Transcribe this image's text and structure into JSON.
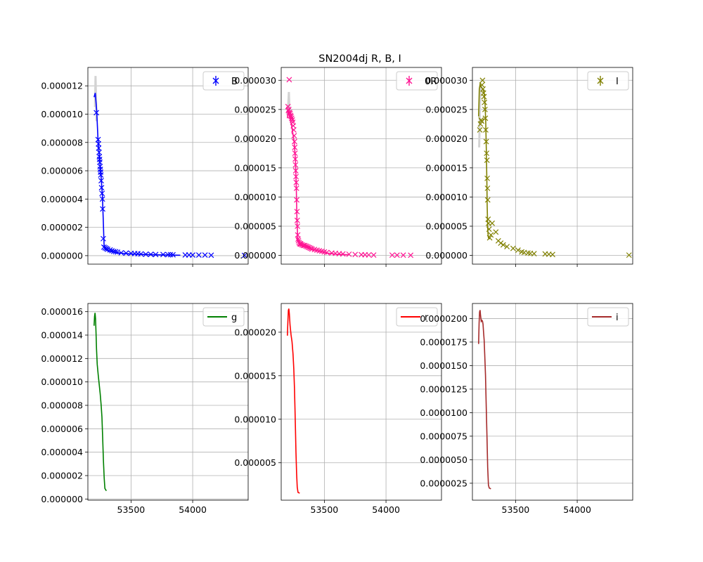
{
  "figure": {
    "title": "SN2004dj  R, B, I"
  },
  "chart_data": [
    {
      "type": "scatter",
      "panel": "B",
      "color": "#0000ff",
      "marker": "x",
      "legend": {
        "label": "B",
        "placement": "top-right"
      },
      "xlim": [
        53150,
        54450
      ],
      "ylim": [
        -6e-07,
        1.33e-05
      ],
      "grid": true,
      "yticks": [
        "0.000000",
        "0.000002",
        "0.000004",
        "0.000006",
        "0.000008",
        "0.000010",
        "0.000012"
      ],
      "yticks_values": [
        0,
        2e-06,
        4e-06,
        6e-06,
        8e-06,
        1e-05,
        1.2e-05
      ],
      "xticks": [],
      "xticks_values": [
        53500,
        54000
      ],
      "template": [
        [
          53208,
          1.05e-05
        ],
        [
          53212,
          1.27e-05
        ],
        [
          53216,
          1.1e-05
        ],
        [
          53220,
          9.5e-06
        ]
      ],
      "model": [
        [
          53200,
          1.12e-05
        ],
        [
          53210,
          1.15e-05
        ],
        [
          53222,
          1.02e-05
        ],
        [
          53232,
          8.2e-06
        ],
        [
          53245,
          6.8e-06
        ],
        [
          53258,
          5.5e-06
        ],
        [
          53268,
          4.2e-06
        ],
        [
          53275,
          2.5e-06
        ],
        [
          53281,
          8e-07
        ],
        [
          53290,
          4.5e-07
        ],
        [
          53320,
          3e-07
        ],
        [
          53380,
          2.2e-07
        ],
        [
          53450,
          1.5e-07
        ],
        [
          53550,
          1e-07
        ],
        [
          53700,
          6e-08
        ],
        [
          53900,
          3e-08
        ]
      ],
      "series": [
        {
          "name": "B",
          "x": [
            53219,
            53233,
            53236,
            53238,
            53241,
            53243,
            53245,
            53247,
            53249,
            53251,
            53253,
            53255,
            53258,
            53261,
            53265,
            53268,
            53270,
            53275,
            53280,
            53290,
            53300,
            53310,
            53330,
            53345,
            53360,
            53375,
            53390,
            53420,
            53460,
            53500,
            53530,
            53555,
            53580,
            53620,
            53660,
            53700,
            53760,
            53800,
            53820,
            53840,
            53940,
            53970,
            54000,
            54050,
            54100,
            54150,
            54420
          ],
          "y": [
            1.01e-05,
            8.2e-06,
            7.9e-06,
            7.6e-06,
            7.3e-06,
            7e-06,
            6.8e-06,
            6.6e-06,
            6.3e-06,
            6.1e-06,
            5.9e-06,
            5.7e-06,
            5.3e-06,
            4.8e-06,
            4.4e-06,
            4e-06,
            3.3e-06,
            1.2e-06,
            6e-07,
            5.5e-07,
            5e-07,
            4.5e-07,
            4e-07,
            3.5e-07,
            3e-07,
            2.8e-07,
            2.5e-07,
            2e-07,
            1.8e-07,
            1.6e-07,
            1.5e-07,
            1.4e-07,
            1.2e-07,
            1e-07,
            9e-08,
            8e-08,
            8e-08,
            7e-08,
            7e-08,
            6e-08,
            5e-08,
            5e-08,
            4e-08,
            4e-08,
            4e-08,
            3e-08,
            2e-08
          ]
        }
      ]
    },
    {
      "type": "scatter",
      "panel": "R",
      "color": "#ff1493",
      "marker": "x",
      "legend": {
        "label": "0R",
        "placement": "top-right"
      },
      "xlim": [
        53150,
        54450
      ],
      "ylim": [
        -1.5e-06,
        3.22e-05
      ],
      "grid": true,
      "yticks": [
        "0.000000",
        "0.000005",
        "0.000010",
        "0.000015",
        "0.000020",
        "0.000025",
        "0.000030"
      ],
      "yticks_values": [
        0,
        5e-06,
        1e-05,
        1.5e-05,
        2e-05,
        2.5e-05,
        3e-05
      ],
      "xticks": [],
      "xticks_values": [
        53500,
        54000
      ],
      "template": [
        [
          53200,
          2.4e-05
        ],
        [
          53208,
          2.62e-05
        ],
        [
          53212,
          2.8e-05
        ],
        [
          53216,
          2.55e-05
        ],
        [
          53222,
          2.35e-05
        ]
      ],
      "model": [
        [
          53200,
          2.35e-05
        ],
        [
          53205,
          2.45e-05
        ],
        [
          53212,
          2.43e-05
        ],
        [
          53225,
          2.32e-05
        ],
        [
          53240,
          2.15e-05
        ],
        [
          53255,
          1.95e-05
        ],
        [
          53265,
          1.65e-05
        ],
        [
          53272,
          1.2e-05
        ],
        [
          53278,
          6e-06
        ],
        [
          53285,
          2.5e-06
        ],
        [
          53300,
          1.8e-06
        ],
        [
          53330,
          1.5e-06
        ],
        [
          53380,
          1.2e-06
        ],
        [
          53440,
          8e-07
        ],
        [
          53520,
          4e-07
        ],
        [
          53600,
          2e-07
        ],
        [
          53700,
          1e-07
        ]
      ],
      "series": [
        {
          "name": "R",
          "x": [
            53215,
            53205,
            53208,
            53212,
            53218,
            53222,
            53226,
            53230,
            53235,
            53240,
            53244,
            53248,
            53252,
            53255,
            53258,
            53260,
            53262,
            53264,
            53266,
            53268,
            53270,
            53272,
            53274,
            53276,
            53278,
            53280,
            53282,
            53284,
            53287,
            53290,
            53295,
            53300,
            53305,
            53310,
            53320,
            53330,
            53340,
            53350,
            53360,
            53370,
            53380,
            53390,
            53400,
            53420,
            53440,
            53460,
            53480,
            53500,
            53520,
            53560,
            53590,
            53620,
            53650,
            53700,
            53750,
            53800,
            53830,
            53860,
            53900,
            54050,
            54090,
            54140,
            54200
          ],
          "y": [
            3.01e-05,
            2.55e-05,
            2.48e-05,
            2.5e-05,
            2.45e-05,
            2.43e-05,
            2.4e-05,
            2.38e-05,
            2.35e-05,
            2.32e-05,
            2.28e-05,
            2.22e-05,
            2.15e-05,
            2.05e-05,
            1.95e-05,
            1.85e-05,
            1.75e-05,
            1.65e-05,
            1.55e-05,
            1.45e-05,
            1.35e-05,
            1.25e-05,
            1.15e-05,
            9.5e-06,
            7.5e-06,
            6e-06,
            5e-06,
            3.5e-06,
            2.8e-06,
            2.5e-06,
            2.2e-06,
            2e-06,
            2e-06,
            1.9e-06,
            1.8e-06,
            1.7e-06,
            1.7e-06,
            1.6e-06,
            1.5e-06,
            1.4e-06,
            1.3e-06,
            1.2e-06,
            1.1e-06,
            1e-06,
            9e-07,
            8e-07,
            7e-07,
            6e-07,
            5e-07,
            4e-07,
            3.5e-07,
            3e-07,
            2.5e-07,
            2e-07,
            1.5e-07,
            1.2e-07,
            1e-07,
            8e-08,
            6e-08,
            5e-08,
            4e-08,
            4e-08,
            3e-08
          ]
        }
      ]
    },
    {
      "type": "scatter",
      "panel": "I",
      "color": "#808000",
      "marker": "x",
      "legend": {
        "label": "I",
        "placement": "top-right"
      },
      "xlim": [
        53150,
        54450
      ],
      "ylim": [
        -1.5e-06,
        3.22e-05
      ],
      "grid": true,
      "yticks": [
        "0.000000",
        "0.000005",
        "0.000010",
        "0.000015",
        "0.000020",
        "0.000025",
        "0.000030"
      ],
      "yticks_values": [
        0,
        5e-06,
        1e-05,
        1.5e-05,
        2e-05,
        2.5e-05,
        3e-05
      ],
      "xticks": [],
      "xticks_values": [
        53500,
        54000
      ],
      "template": [
        [
          53205,
          1.85e-05
        ],
        [
          53210,
          2.4e-05
        ],
        [
          53214,
          2.75e-05
        ],
        [
          53218,
          2.85e-05
        ],
        [
          53224,
          2.9e-05
        ]
      ],
      "model": [
        [
          53200,
          2.38e-05
        ],
        [
          53206,
          2.85e-05
        ],
        [
          53212,
          2.93e-05
        ],
        [
          53222,
          2.88e-05
        ],
        [
          53235,
          2.85e-05
        ],
        [
          53245,
          2.78e-05
        ],
        [
          53252,
          2.62e-05
        ],
        [
          53258,
          2.3e-05
        ],
        [
          53263,
          1.8e-05
        ],
        [
          53267,
          1.3e-05
        ],
        [
          53270,
          8.5e-06
        ],
        [
          53273,
          5.5e-06
        ],
        [
          53276,
          3.8e-06
        ],
        [
          53280,
          3e-06
        ],
        [
          53290,
          2.8e-06
        ]
      ],
      "series": [
        {
          "name": "I",
          "x": [
            53210,
            53215,
            53220,
            53225,
            53228,
            53232,
            53236,
            53240,
            53244,
            53248,
            53252,
            53255,
            53258,
            53262,
            53265,
            53268,
            53270,
            53272,
            53274,
            53277,
            53280,
            53285,
            53290,
            53300,
            53310,
            53340,
            53360,
            53380,
            53400,
            53430,
            53480,
            53520,
            53550,
            53570,
            53600,
            53620,
            53650,
            53740,
            53770,
            53800,
            54420
          ],
          "y": [
            2.15e-05,
            2.25e-05,
            2.32e-05,
            2.3e-05,
            2.92e-05,
            3e-05,
            2.85e-05,
            2.78e-05,
            2.72e-05,
            2.62e-05,
            2.5e-05,
            2.35e-05,
            2.15e-05,
            1.95e-05,
            1.75e-05,
            1.63e-05,
            1.32e-05,
            1.15e-05,
            9.5e-06,
            6.2e-06,
            5.5e-06,
            4.5e-06,
            3e-06,
            3.5e-06,
            5.5e-06,
            4e-06,
            2.5e-06,
            2.1e-06,
            1.8e-06,
            1.5e-06,
            1.2e-06,
            9e-07,
            6e-07,
            5e-07,
            4e-07,
            3.5e-07,
            3e-07,
            2.5e-07,
            2e-07,
            1.5e-07,
            5e-08
          ]
        }
      ]
    },
    {
      "type": "line",
      "panel": "g",
      "color": "#008000",
      "legend": {
        "label": "g",
        "placement": "top-right"
      },
      "xlim": [
        53150,
        54450
      ],
      "ylim": [
        -1e-07,
        1.67e-05
      ],
      "grid": true,
      "yticks": [
        "0.000000",
        "0.000002",
        "0.000004",
        "0.000006",
        "0.000008",
        "0.000010",
        "0.000012",
        "0.000014",
        "0.000016"
      ],
      "yticks_values": [
        0,
        2e-06,
        4e-06,
        6e-06,
        8e-06,
        1e-05,
        1.2e-05,
        1.4e-05,
        1.6e-05
      ],
      "xticks": [
        "53500",
        "54000"
      ],
      "xticks_values": [
        53500,
        54000
      ],
      "series": [
        {
          "name": "g",
          "x": [
            53200,
            53204,
            53208,
            53212,
            53216,
            53220,
            53226,
            53234,
            53242,
            53250,
            53258,
            53264,
            53270,
            53276,
            53282,
            53288,
            53300
          ],
          "y": [
            1.48e-05,
            1.56e-05,
            1.59e-05,
            1.54e-05,
            1.42e-05,
            1.28e-05,
            1.15e-05,
            1.06e-05,
            9.8e-06,
            9e-06,
            8e-06,
            7e-06,
            5.3e-06,
            3.3e-06,
            1.8e-06,
            9e-07,
            7e-07
          ]
        }
      ]
    },
    {
      "type": "line",
      "panel": "r",
      "color": "#ff0000",
      "legend": {
        "label": "r",
        "placement": "top-right"
      },
      "xlim": [
        53150,
        54450
      ],
      "ylim": [
        7e-07,
        2.33e-05
      ],
      "grid": true,
      "yticks": [
        "0.000005",
        "0.000010",
        "0.000015",
        "0.000020"
      ],
      "yticks_values": [
        5e-06,
        1e-05,
        1.5e-05,
        2e-05
      ],
      "xticks": [
        "53500",
        "54000"
      ],
      "xticks_values": [
        53500,
        54000
      ],
      "series": [
        {
          "name": "r",
          "x": [
            53200,
            53204,
            53208,
            53212,
            53216,
            53222,
            53230,
            53238,
            53246,
            53252,
            53258,
            53262,
            53266,
            53270,
            53275,
            53280,
            53286,
            53300
          ],
          "y": [
            1.96e-05,
            2.12e-05,
            2.25e-05,
            2.27e-05,
            2.21e-05,
            2.08e-05,
            1.97e-05,
            1.89e-05,
            1.75e-05,
            1.58e-05,
            1.35e-05,
            1.12e-05,
            8.8e-06,
            6.2e-06,
            3.8e-06,
            2.2e-06,
            1.6e-06,
            1.5e-06
          ]
        }
      ]
    },
    {
      "type": "line",
      "panel": "i",
      "color": "#a52a2a",
      "legend": {
        "label": "i",
        "placement": "top-right"
      },
      "xlim": [
        53150,
        54450
      ],
      "ylim": [
        7e-07,
        2.16e-05
      ],
      "grid": true,
      "yticks": [
        "0.0000025",
        "0.0000050",
        "0.0000075",
        "0.0000100",
        "0.0000125",
        "0.0000150",
        "0.0000175",
        "0.0000200"
      ],
      "yticks_values": [
        2.5e-06,
        5e-06,
        7.5e-06,
        1e-05,
        1.25e-05,
        1.5e-05,
        1.75e-05,
        2e-05
      ],
      "xticks": [
        "53500",
        "54000"
      ],
      "xticks_values": [
        53500,
        54000
      ],
      "series": [
        {
          "name": "i",
          "x": [
            53200,
            53204,
            53208,
            53212,
            53216,
            53222,
            53228,
            53232,
            53236,
            53240,
            53245,
            53250,
            53256,
            53262,
            53268,
            53274,
            53280,
            53286,
            53300
          ],
          "y": [
            1.73e-05,
            1.95e-05,
            2.07e-05,
            2.09e-05,
            2.03e-05,
            1.97e-05,
            1.98e-05,
            1.97e-05,
            1.94e-05,
            1.86e-05,
            1.77e-05,
            1.62e-05,
            1.4e-05,
            1.08e-05,
            7.5e-06,
            4.2e-06,
            2.3e-06,
            2e-06,
            1.9e-06
          ]
        }
      ]
    }
  ]
}
